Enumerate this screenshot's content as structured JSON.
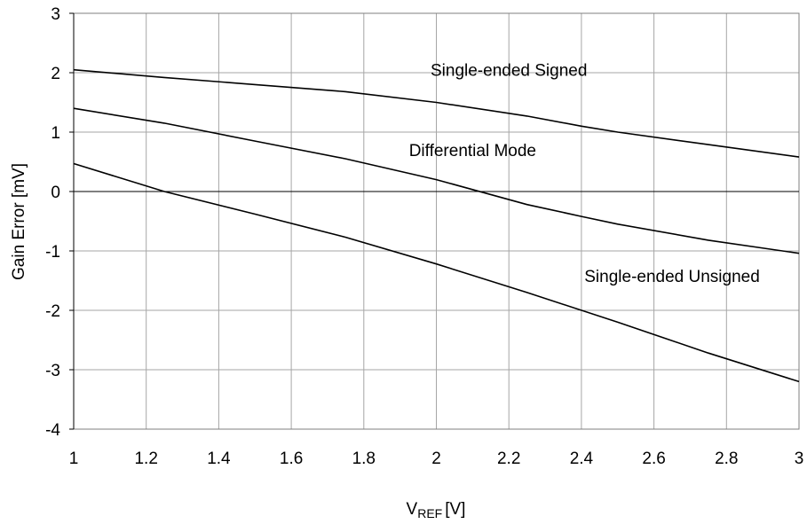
{
  "chart_data": {
    "type": "line",
    "title": "",
    "xlabel": "V",
    "xlabel_sub": "REF",
    "xlabel_unit": "[V]",
    "ylabel": "Gain Error [mV]",
    "xlim": [
      1,
      3
    ],
    "ylim": [
      -4,
      3
    ],
    "xticks": [
      1,
      1.2,
      1.4,
      1.6,
      1.8,
      2,
      2.2,
      2.4,
      2.6,
      2.8,
      3
    ],
    "xtick_labels": [
      "1",
      "1.2",
      "1.4",
      "1.6",
      "1.8",
      "2",
      "2.2",
      "2.4",
      "2.6",
      "2.8",
      "3"
    ],
    "yticks": [
      -4,
      -3,
      -2,
      -1,
      0,
      1,
      2,
      3
    ],
    "ytick_labels": [
      "-4",
      "-3",
      "-2",
      "-1",
      "0",
      "1",
      "2",
      "3"
    ],
    "grid": true,
    "series": [
      {
        "name": "Single-ended Signed",
        "x": [
          1,
          1.25,
          1.5,
          1.75,
          2,
          2.25,
          2.4,
          2.5,
          2.75,
          3
        ],
        "y": [
          2.05,
          1.92,
          1.8,
          1.68,
          1.5,
          1.27,
          1.1,
          1.0,
          0.79,
          0.58
        ]
      },
      {
        "name": "Differential Mode",
        "x": [
          1,
          1.25,
          1.5,
          1.75,
          2,
          2.25,
          2.4,
          2.5,
          2.75,
          3
        ],
        "y": [
          1.4,
          1.15,
          0.85,
          0.55,
          0.2,
          -0.22,
          -0.42,
          -0.55,
          -0.82,
          -1.04
        ]
      },
      {
        "name": "Single-ended Unsigned",
        "x": [
          1,
          1.25,
          1.5,
          1.75,
          2,
          2.25,
          2.5,
          2.75,
          3
        ],
        "y": [
          0.47,
          0.0,
          -0.38,
          -0.77,
          -1.22,
          -1.7,
          -2.2,
          -2.72,
          -3.2
        ]
      }
    ],
    "annotations": [
      {
        "text": "Single-ended Signed",
        "x": 2.2,
        "y": 1.95
      },
      {
        "text": "Differential Mode",
        "x": 2.1,
        "y": 0.6
      },
      {
        "text": "Single-ended Unsigned",
        "x": 2.65,
        "y": -1.52
      }
    ]
  }
}
